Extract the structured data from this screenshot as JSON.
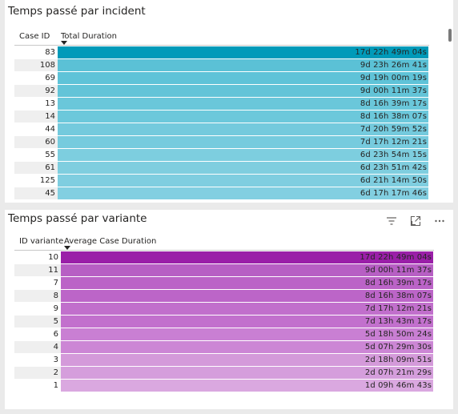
{
  "panel1": {
    "title": "Temps passé par incident",
    "col_id": "Case ID",
    "col_value": "Total Duration",
    "rows": [
      {
        "id": "83",
        "label": "17d 22h 49m 04s",
        "color": "#009ab9"
      },
      {
        "id": "108",
        "label": "9d 23h 26m 41s",
        "color": "#5bc1d6"
      },
      {
        "id": "69",
        "label": "9d 19h 00m 19s",
        "color": "#5fc3d8"
      },
      {
        "id": "92",
        "label": "9d 00h 11m 37s",
        "color": "#63c4d8"
      },
      {
        "id": "13",
        "label": "8d 16h 39m 17s",
        "color": "#6ac7da"
      },
      {
        "id": "14",
        "label": "8d 16h 38m 07s",
        "color": "#6cc8db"
      },
      {
        "id": "44",
        "label": "7d 20h 59m 52s",
        "color": "#74cadd"
      },
      {
        "id": "60",
        "label": "7d 17h 12m 21s",
        "color": "#76cbde"
      },
      {
        "id": "55",
        "label": "6d 23h 54m 15s",
        "color": "#7dcedf"
      },
      {
        "id": "61",
        "label": "6d 23h 51m 42s",
        "color": "#7fcedf"
      },
      {
        "id": "125",
        "label": "6d 21h 14m 50s",
        "color": "#7fcee0"
      },
      {
        "id": "45",
        "label": "6d 17h 17m 46s",
        "color": "#82cfe1"
      }
    ]
  },
  "panel2": {
    "title": "Temps passé par variante",
    "col_id": "ID variante",
    "col_value": "Average Case Duration",
    "icons": [
      "filter-icon",
      "focus-mode-icon",
      "more-options-icon"
    ],
    "rows": [
      {
        "id": "10",
        "label": "17d 22h 49m 04s",
        "color": "#9a1fa8"
      },
      {
        "id": "11",
        "label": "9d 00h 11m 37s",
        "color": "#b75fc4"
      },
      {
        "id": "7",
        "label": "8d 16h 39m 17s",
        "color": "#bb63c7"
      },
      {
        "id": "8",
        "label": "8d 16h 38m 07s",
        "color": "#bc65c8"
      },
      {
        "id": "9",
        "label": "7d 17h 12m 21s",
        "color": "#c16fcc"
      },
      {
        "id": "5",
        "label": "7d 13h 43m 17s",
        "color": "#c270cd"
      },
      {
        "id": "6",
        "label": "5d 18h 50m 24s",
        "color": "#c97fd3"
      },
      {
        "id": "4",
        "label": "5d 07h 29m 30s",
        "color": "#cc86d5"
      },
      {
        "id": "3",
        "label": "2d 18h 09m 51s",
        "color": "#d49ada"
      },
      {
        "id": "2",
        "label": "2d 07h 21m 29s",
        "color": "#d59edc"
      },
      {
        "id": "1",
        "label": "1d 09h 46m 43s",
        "color": "#daa8e0"
      }
    ]
  }
}
